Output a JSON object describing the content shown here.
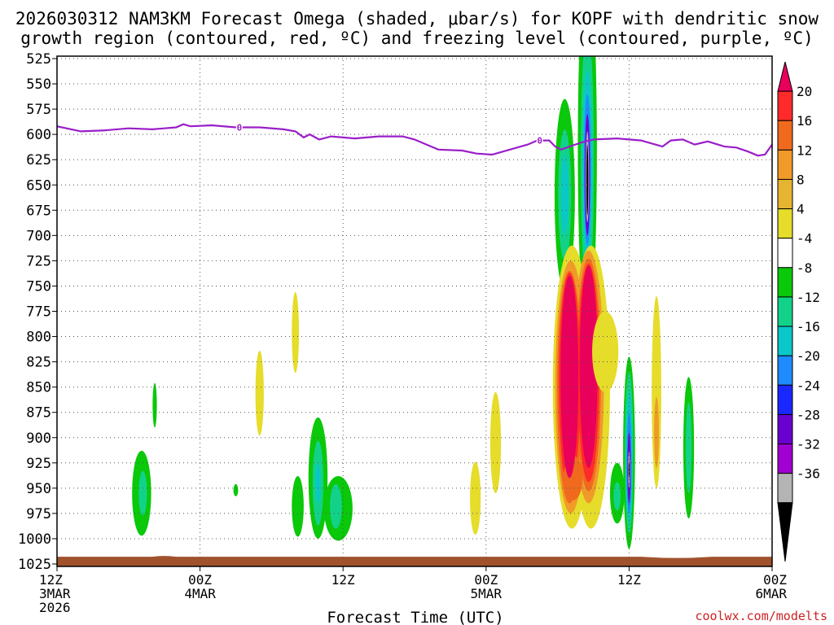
{
  "chart_data": {
    "type": "heatmap",
    "title": {
      "line1": "2026030312 NAM3KM Forecast Omega (shaded, μbar/s) for KOPF with dendritic snow",
      "line2": "growth region (contoured, red, ºC) and freezing level (contoured, purple, ºC)"
    },
    "xlabel": "Forecast Time (UTC)",
    "credit": "coolwx.com/modelts",
    "x_range_hours": [
      0,
      60
    ],
    "x_ticks": [
      {
        "h": 0,
        "l1": "12Z",
        "l2": "3MAR",
        "l3": "2026"
      },
      {
        "h": 12,
        "l1": "00Z",
        "l2": "4MAR",
        "l3": ""
      },
      {
        "h": 24,
        "l1": "12Z",
        "l2": "",
        "l3": ""
      },
      {
        "h": 36,
        "l1": "00Z",
        "l2": "5MAR",
        "l3": ""
      },
      {
        "h": 48,
        "l1": "12Z",
        "l2": "",
        "l3": ""
      },
      {
        "h": 60,
        "l1": "00Z",
        "l2": "6MAR",
        "l3": ""
      }
    ],
    "y_ticks": [
      "525",
      "550",
      "575",
      "600",
      "625",
      "650",
      "675",
      "700",
      "725",
      "750",
      "775",
      "800",
      "825",
      "850",
      "875",
      "900",
      "925",
      "950",
      "975",
      "1000",
      "1025"
    ],
    "y_range_mb": [
      525,
      1025
    ],
    "grid": true,
    "colorbar": {
      "labels": [
        "20",
        "16",
        "12",
        "8",
        "4",
        "-4",
        "-8",
        "-12",
        "-16",
        "-20",
        "-24",
        "-28",
        "-32",
        "-36"
      ],
      "colors": [
        "#e8005a",
        "#ff2a2a",
        "#f06a1e",
        "#f09a2a",
        "#e6b430",
        "#e6dc2a",
        "#ffffff",
        "#0ac80a",
        "#12d28a",
        "#0ac8c8",
        "#1e8cff",
        "#1a28ff",
        "#6a00d0",
        "#a000d0",
        "#b4b4b4",
        "#000000"
      ]
    },
    "freezing_level": {
      "label": "0",
      "label_hours": [
        15.3,
        40.5
      ],
      "points": [
        [
          0,
          592
        ],
        [
          2,
          597
        ],
        [
          4,
          596
        ],
        [
          6,
          594
        ],
        [
          8,
          595
        ],
        [
          9,
          594
        ],
        [
          10,
          593
        ],
        [
          10.6,
          590
        ],
        [
          11.2,
          592
        ],
        [
          13,
          591
        ],
        [
          15,
          593
        ],
        [
          17,
          593
        ],
        [
          19,
          595
        ],
        [
          20,
          597
        ],
        [
          20.7,
          603
        ],
        [
          21.2,
          600
        ],
        [
          22,
          605
        ],
        [
          23,
          602
        ],
        [
          25,
          604
        ],
        [
          27,
          602
        ],
        [
          29,
          602
        ],
        [
          30,
          605
        ],
        [
          31,
          610
        ],
        [
          32,
          615
        ],
        [
          34,
          616
        ],
        [
          35.2,
          619
        ],
        [
          36.5,
          620
        ],
        [
          38,
          615
        ],
        [
          39.5,
          610
        ],
        [
          40.3,
          606
        ],
        [
          41.3,
          606
        ],
        [
          41.8,
          612
        ],
        [
          42.3,
          615
        ],
        [
          43,
          612
        ],
        [
          44,
          608
        ],
        [
          45,
          605
        ],
        [
          47,
          604
        ],
        [
          49,
          606
        ],
        [
          50.8,
          612
        ],
        [
          51.5,
          606
        ],
        [
          52.5,
          605
        ],
        [
          53.5,
          610
        ],
        [
          54.6,
          607
        ],
        [
          56,
          612
        ],
        [
          57,
          613
        ],
        [
          58,
          617
        ],
        [
          58.8,
          621
        ],
        [
          59.4,
          620
        ],
        [
          60,
          610
        ]
      ]
    },
    "omega_cells": [
      {
        "h": 7.1,
        "mb": 955,
        "wh": 0.8,
        "wmb": 42,
        "cat": "-4"
      },
      {
        "h": 7.2,
        "mb": 955,
        "wh": 0.35,
        "wmb": 22,
        "cat": "-8"
      },
      {
        "h": 8.2,
        "mb": 868,
        "wh": 0.18,
        "wmb": 22,
        "cat": "-4"
      },
      {
        "h": 15.0,
        "mb": 952,
        "wh": 0.2,
        "wmb": 6,
        "cat": "-4"
      },
      {
        "h": 17.0,
        "mb": 856,
        "wh": 0.35,
        "wmb": 42,
        "cat": "4"
      },
      {
        "h": 20.0,
        "mb": 796,
        "wh": 0.3,
        "wmb": 40,
        "cat": "4"
      },
      {
        "h": 20.2,
        "mb": 968,
        "wh": 0.5,
        "wmb": 30,
        "cat": "-4"
      },
      {
        "h": 21.9,
        "mb": 940,
        "wh": 0.8,
        "wmb": 60,
        "cat": "-4"
      },
      {
        "h": 21.9,
        "mb": 945,
        "wh": 0.45,
        "wmb": 42,
        "cat": "-8"
      },
      {
        "h": 21.9,
        "mb": 945,
        "wh": 0.2,
        "wmb": 20,
        "cat": "-12"
      },
      {
        "h": 23.6,
        "mb": 970,
        "wh": 1.2,
        "wmb": 32,
        "cat": "-4"
      },
      {
        "h": 23.4,
        "mb": 968,
        "wh": 0.5,
        "wmb": 22,
        "cat": "-8"
      },
      {
        "h": 35.1,
        "mb": 960,
        "wh": 0.45,
        "wmb": 36,
        "cat": "4"
      },
      {
        "h": 36.8,
        "mb": 905,
        "wh": 0.45,
        "wmb": 50,
        "cat": "4"
      },
      {
        "h": 42.6,
        "mb": 660,
        "wh": 0.85,
        "wmb": 95,
        "cat": "-4"
      },
      {
        "h": 42.6,
        "mb": 660,
        "wh": 0.55,
        "wmb": 65,
        "cat": "-8"
      },
      {
        "h": 42.6,
        "mb": 660,
        "wh": 0.3,
        "wmb": 40,
        "cat": "-12"
      },
      {
        "h": 44.5,
        "mb": 615,
        "wh": 0.8,
        "wmb": 185,
        "cat": "-4"
      },
      {
        "h": 44.5,
        "mb": 625,
        "wh": 0.55,
        "wmb": 130,
        "cat": "-8"
      },
      {
        "h": 44.5,
        "mb": 632,
        "wh": 0.4,
        "wmb": 95,
        "cat": "-12"
      },
      {
        "h": 44.5,
        "mb": 635,
        "wh": 0.3,
        "wmb": 75,
        "cat": "-16"
      },
      {
        "h": 44.5,
        "mb": 640,
        "wh": 0.22,
        "wmb": 60,
        "cat": "-24"
      },
      {
        "h": 44.5,
        "mb": 642,
        "wh": 0.14,
        "wmb": 45,
        "cat": "-32"
      },
      {
        "h": 44.5,
        "mb": 645,
        "wh": 0.08,
        "wmb": 35,
        "cat": "-36"
      },
      {
        "h": 43.2,
        "mb": 850,
        "wh": 1.6,
        "wmb": 140,
        "cat": "4"
      },
      {
        "h": 44.8,
        "mb": 850,
        "wh": 1.6,
        "wmb": 140,
        "cat": "4"
      },
      {
        "h": 43.1,
        "mb": 850,
        "wh": 1.3,
        "wmb": 125,
        "cat": "8"
      },
      {
        "h": 44.6,
        "mb": 840,
        "wh": 1.3,
        "wmb": 125,
        "cat": "8"
      },
      {
        "h": 43.0,
        "mb": 850,
        "wh": 1.05,
        "wmb": 115,
        "cat": "12"
      },
      {
        "h": 44.6,
        "mb": 838,
        "wh": 1.05,
        "wmb": 115,
        "cat": "12"
      },
      {
        "h": 43.0,
        "mb": 845,
        "wh": 0.9,
        "wmb": 108,
        "cat": "16"
      },
      {
        "h": 44.6,
        "mb": 836,
        "wh": 0.9,
        "wmb": 108,
        "cat": "16"
      },
      {
        "h": 43.3,
        "mb": 940,
        "wh": 0.8,
        "wmb": 22,
        "cat": "12"
      },
      {
        "h": 43.0,
        "mb": 840,
        "wh": 0.75,
        "wmb": 100,
        "cat": "20"
      },
      {
        "h": 44.6,
        "mb": 830,
        "wh": 0.75,
        "wmb": 100,
        "cat": "20"
      },
      {
        "h": 46.0,
        "mb": 815,
        "wh": 1.1,
        "wmb": 40,
        "cat": "4"
      },
      {
        "h": 47.0,
        "mb": 955,
        "wh": 0.6,
        "wmb": 30,
        "cat": "-4"
      },
      {
        "h": 47.0,
        "mb": 958,
        "wh": 0.3,
        "wmb": 14,
        "cat": "-8"
      },
      {
        "h": 48.0,
        "mb": 915,
        "wh": 0.5,
        "wmb": 95,
        "cat": "-4"
      },
      {
        "h": 48.0,
        "mb": 915,
        "wh": 0.35,
        "wmb": 80,
        "cat": "-8"
      },
      {
        "h": 48.0,
        "mb": 920,
        "wh": 0.28,
        "wmb": 65,
        "cat": "-12"
      },
      {
        "h": 48.0,
        "mb": 925,
        "wh": 0.2,
        "wmb": 50,
        "cat": "-16"
      },
      {
        "h": 48.0,
        "mb": 930,
        "wh": 0.14,
        "wmb": 35,
        "cat": "-24"
      },
      {
        "h": 48.0,
        "mb": 932,
        "wh": 0.08,
        "wmb": 18,
        "cat": "-32"
      },
      {
        "h": 48.0,
        "mb": 932,
        "wh": 0.04,
        "wmb": 8,
        "cat": "-36"
      },
      {
        "h": 50.3,
        "mb": 855,
        "wh": 0.4,
        "wmb": 95,
        "cat": "4"
      },
      {
        "h": 50.3,
        "mb": 895,
        "wh": 0.2,
        "wmb": 35,
        "cat": "8"
      },
      {
        "h": 53.0,
        "mb": 910,
        "wh": 0.45,
        "wmb": 70,
        "cat": "-4"
      },
      {
        "h": 53.0,
        "mb": 910,
        "wh": 0.25,
        "wmb": 45,
        "cat": "-8"
      }
    ],
    "ground": {
      "color": "#a0522d",
      "mb_top": 1017
    }
  }
}
